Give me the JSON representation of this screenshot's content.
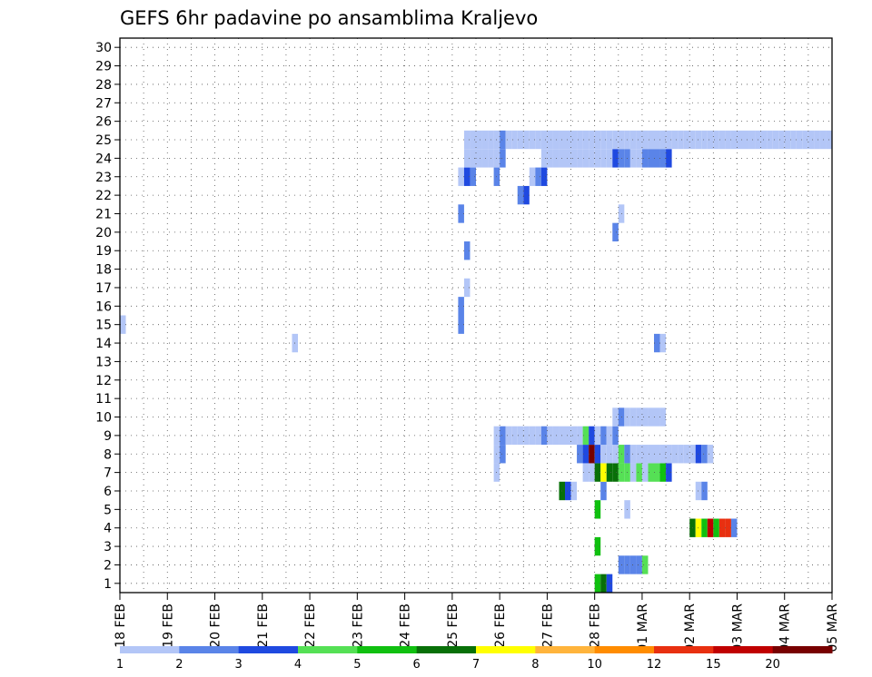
{
  "chart_data": {
    "type": "heatmap",
    "title": "GEFS 6hr padavine po ansamblima Kraljevo",
    "x_tick_labels": [
      "18 FEB",
      "19 FEB",
      "20 FEB",
      "21 FEB",
      "22 FEB",
      "23 FEB",
      "24 FEB",
      "25 FEB",
      "26 FEB",
      "27 FEB",
      "28 FEB",
      "01 MAR",
      "02 MAR",
      "03 MAR",
      "04 MAR",
      "05 MAR"
    ],
    "x_step_hours": 6,
    "y_tick_labels": [
      "1",
      "2",
      "3",
      "4",
      "5",
      "6",
      "7",
      "8",
      "9",
      "10",
      "11",
      "12",
      "13",
      "14",
      "15",
      "16",
      "17",
      "18",
      "19",
      "20",
      "21",
      "22",
      "23",
      "24",
      "25",
      "26",
      "27",
      "28",
      "29",
      "30"
    ],
    "ylim": [
      0,
      30
    ],
    "grid": true,
    "legend_position": "bottom",
    "legend": {
      "boundary_labels": [
        "1",
        "2",
        "3",
        "4",
        "5",
        "6",
        "7",
        "8",
        "10",
        "12",
        "15",
        "20"
      ],
      "colors": [
        "#b3c6f7",
        "#5a84e8",
        "#1f49e0",
        "#55e055",
        "#10c010",
        "#087008",
        "#ffff00",
        "#ffb43c",
        "#ff8c00",
        "#e83010",
        "#c00000",
        "#780000"
      ]
    },
    "cells": [
      {
        "t": 80,
        "m": 0,
        "c": 4
      },
      {
        "t": 81,
        "m": 0,
        "c": 5
      },
      {
        "t": 82,
        "m": 0,
        "c": 2
      },
      {
        "t": 84,
        "m": 1,
        "c": 1
      },
      {
        "t": 85,
        "m": 1,
        "c": 1
      },
      {
        "t": 86,
        "m": 1,
        "c": 1
      },
      {
        "t": 87,
        "m": 1,
        "c": 1
      },
      {
        "t": 88,
        "m": 1,
        "c": 3
      },
      {
        "t": 80,
        "m": 2,
        "c": 4
      },
      {
        "t": 96,
        "m": 3,
        "c": 5
      },
      {
        "t": 97,
        "m": 3,
        "c": 6
      },
      {
        "t": 98,
        "m": 3,
        "c": 4
      },
      {
        "t": 99,
        "m": 3,
        "c": 10
      },
      {
        "t": 100,
        "m": 3,
        "c": 4
      },
      {
        "t": 101,
        "m": 3,
        "c": 9
      },
      {
        "t": 102,
        "m": 3,
        "c": 9
      },
      {
        "t": 103,
        "m": 3,
        "c": 1
      },
      {
        "t": 80,
        "m": 4,
        "c": 4
      },
      {
        "t": 85,
        "m": 4,
        "c": 0
      },
      {
        "t": 74,
        "m": 5,
        "c": 5
      },
      {
        "t": 75,
        "m": 5,
        "c": 2
      },
      {
        "t": 76,
        "m": 5,
        "c": 0
      },
      {
        "t": 81,
        "m": 5,
        "c": 1
      },
      {
        "t": 97,
        "m": 5,
        "c": 0
      },
      {
        "t": 98,
        "m": 5,
        "c": 1
      },
      {
        "t": 63,
        "m": 6,
        "c": 0
      },
      {
        "t": 78,
        "m": 6,
        "c": 0
      },
      {
        "t": 79,
        "m": 6,
        "c": 0
      },
      {
        "t": 80,
        "m": 6,
        "c": 5
      },
      {
        "t": 81,
        "m": 6,
        "c": 6
      },
      {
        "t": 82,
        "m": 6,
        "c": 5
      },
      {
        "t": 83,
        "m": 6,
        "c": 5
      },
      {
        "t": 84,
        "m": 6,
        "c": 3
      },
      {
        "t": 85,
        "m": 6,
        "c": 3
      },
      {
        "t": 86,
        "m": 6,
        "c": 0
      },
      {
        "t": 87,
        "m": 6,
        "c": 3
      },
      {
        "t": 88,
        "m": 6,
        "c": 0
      },
      {
        "t": 89,
        "m": 6,
        "c": 3
      },
      {
        "t": 90,
        "m": 6,
        "c": 3
      },
      {
        "t": 91,
        "m": 6,
        "c": 4
      },
      {
        "t": 92,
        "m": 6,
        "c": 2
      },
      {
        "t": 63,
        "m": 7,
        "c": 0
      },
      {
        "t": 64,
        "m": 7,
        "c": 1
      },
      {
        "t": 77,
        "m": 7,
        "c": 1
      },
      {
        "t": 78,
        "m": 7,
        "c": 2
      },
      {
        "t": 79,
        "m": 7,
        "c": 11
      },
      {
        "t": 80,
        "m": 7,
        "c": 2
      },
      {
        "t": 81,
        "m": 7,
        "c": 0
      },
      {
        "t": 82,
        "m": 7,
        "c": 0
      },
      {
        "t": 83,
        "m": 7,
        "c": 0
      },
      {
        "t": 84,
        "m": 7,
        "c": 3
      },
      {
        "t": 85,
        "m": 7,
        "c": 1
      },
      {
        "t": 86,
        "m": 7,
        "c": 0
      },
      {
        "t": 87,
        "m": 7,
        "c": 0
      },
      {
        "t": 88,
        "m": 7,
        "c": 0
      },
      {
        "t": 89,
        "m": 7,
        "c": 0
      },
      {
        "t": 90,
        "m": 7,
        "c": 0
      },
      {
        "t": 91,
        "m": 7,
        "c": 0
      },
      {
        "t": 92,
        "m": 7,
        "c": 0
      },
      {
        "t": 93,
        "m": 7,
        "c": 0
      },
      {
        "t": 94,
        "m": 7,
        "c": 0
      },
      {
        "t": 95,
        "m": 7,
        "c": 0
      },
      {
        "t": 96,
        "m": 7,
        "c": 0
      },
      {
        "t": 97,
        "m": 7,
        "c": 2
      },
      {
        "t": 98,
        "m": 7,
        "c": 1
      },
      {
        "t": 99,
        "m": 7,
        "c": 0
      },
      {
        "t": 63,
        "m": 8,
        "c": 0
      },
      {
        "t": 64,
        "m": 8,
        "c": 1
      },
      {
        "t": 65,
        "m": 8,
        "c": 0
      },
      {
        "t": 66,
        "m": 8,
        "c": 0
      },
      {
        "t": 67,
        "m": 8,
        "c": 0
      },
      {
        "t": 68,
        "m": 8,
        "c": 0
      },
      {
        "t": 69,
        "m": 8,
        "c": 0
      },
      {
        "t": 70,
        "m": 8,
        "c": 0
      },
      {
        "t": 71,
        "m": 8,
        "c": 1
      },
      {
        "t": 72,
        "m": 8,
        "c": 0
      },
      {
        "t": 73,
        "m": 8,
        "c": 0
      },
      {
        "t": 74,
        "m": 8,
        "c": 0
      },
      {
        "t": 75,
        "m": 8,
        "c": 0
      },
      {
        "t": 76,
        "m": 8,
        "c": 0
      },
      {
        "t": 77,
        "m": 8,
        "c": 0
      },
      {
        "t": 78,
        "m": 8,
        "c": 3
      },
      {
        "t": 79,
        "m": 8,
        "c": 2
      },
      {
        "t": 80,
        "m": 8,
        "c": 0
      },
      {
        "t": 81,
        "m": 8,
        "c": 1
      },
      {
        "t": 82,
        "m": 8,
        "c": 0
      },
      {
        "t": 83,
        "m": 8,
        "c": 1
      },
      {
        "t": 83,
        "m": 9,
        "c": 0
      },
      {
        "t": 84,
        "m": 9,
        "c": 1
      },
      {
        "t": 85,
        "m": 9,
        "c": 0
      },
      {
        "t": 86,
        "m": 9,
        "c": 0
      },
      {
        "t": 87,
        "m": 9,
        "c": 0
      },
      {
        "t": 88,
        "m": 9,
        "c": 0
      },
      {
        "t": 89,
        "m": 9,
        "c": 0
      },
      {
        "t": 90,
        "m": 9,
        "c": 0
      },
      {
        "t": 91,
        "m": 9,
        "c": 0
      },
      {
        "t": 29,
        "m": 13,
        "c": 0
      },
      {
        "t": 90,
        "m": 13,
        "c": 1
      },
      {
        "t": 91,
        "m": 13,
        "c": 0
      },
      {
        "t": 0,
        "m": 14,
        "c": 0
      },
      {
        "t": 57,
        "m": 14,
        "c": 1
      },
      {
        "t": 57,
        "m": 15,
        "c": 1
      },
      {
        "t": 58,
        "m": 16,
        "c": 0
      },
      {
        "t": 58,
        "m": 18,
        "c": 1
      },
      {
        "t": 83,
        "m": 19,
        "c": 1
      },
      {
        "t": 57,
        "m": 20,
        "c": 1
      },
      {
        "t": 84,
        "m": 20,
        "c": 0
      },
      {
        "t": 67,
        "m": 21,
        "c": 1
      },
      {
        "t": 68,
        "m": 21,
        "c": 2
      },
      {
        "t": 57,
        "m": 22,
        "c": 0
      },
      {
        "t": 58,
        "m": 22,
        "c": 2
      },
      {
        "t": 59,
        "m": 22,
        "c": 1
      },
      {
        "t": 63,
        "m": 22,
        "c": 1
      },
      {
        "t": 69,
        "m": 22,
        "c": 0
      },
      {
        "t": 70,
        "m": 22,
        "c": 1
      },
      {
        "t": 71,
        "m": 22,
        "c": 2
      },
      {
        "t": 58,
        "m": 23,
        "c": 0
      },
      {
        "t": 59,
        "m": 23,
        "c": 0
      },
      {
        "t": 60,
        "m": 23,
        "c": 0
      },
      {
        "t": 61,
        "m": 23,
        "c": 0
      },
      {
        "t": 62,
        "m": 23,
        "c": 0
      },
      {
        "t": 63,
        "m": 23,
        "c": 0
      },
      {
        "t": 64,
        "m": 23,
        "c": 1
      },
      {
        "t": 71,
        "m": 23,
        "c": 0
      },
      {
        "t": 72,
        "m": 23,
        "c": 0
      },
      {
        "t": 73,
        "m": 23,
        "c": 0
      },
      {
        "t": 74,
        "m": 23,
        "c": 0
      },
      {
        "t": 75,
        "m": 23,
        "c": 0
      },
      {
        "t": 76,
        "m": 23,
        "c": 0
      },
      {
        "t": 77,
        "m": 23,
        "c": 0
      },
      {
        "t": 78,
        "m": 23,
        "c": 0
      },
      {
        "t": 79,
        "m": 23,
        "c": 0
      },
      {
        "t": 80,
        "m": 23,
        "c": 0
      },
      {
        "t": 81,
        "m": 23,
        "c": 0
      },
      {
        "t": 82,
        "m": 23,
        "c": 0
      },
      {
        "t": 83,
        "m": 23,
        "c": 2
      },
      {
        "t": 84,
        "m": 23,
        "c": 1
      },
      {
        "t": 85,
        "m": 23,
        "c": 1
      },
      {
        "t": 86,
        "m": 23,
        "c": 0
      },
      {
        "t": 87,
        "m": 23,
        "c": 0
      },
      {
        "t": 88,
        "m": 23,
        "c": 1
      },
      {
        "t": 89,
        "m": 23,
        "c": 1
      },
      {
        "t": 90,
        "m": 23,
        "c": 1
      },
      {
        "t": 91,
        "m": 23,
        "c": 1
      },
      {
        "t": 92,
        "m": 23,
        "c": 2
      },
      {
        "t": 58,
        "m": 24,
        "c": 0
      },
      {
        "t": 59,
        "m": 24,
        "c": 0
      },
      {
        "t": 60,
        "m": 24,
        "c": 0
      },
      {
        "t": 61,
        "m": 24,
        "c": 0
      },
      {
        "t": 62,
        "m": 24,
        "c": 0
      },
      {
        "t": 63,
        "m": 24,
        "c": 0
      },
      {
        "t": 64,
        "m": 24,
        "c": 1
      },
      {
        "t": 65,
        "m": 24,
        "c": 0
      },
      {
        "t": 66,
        "m": 24,
        "c": 0
      },
      {
        "t": 67,
        "m": 24,
        "c": 0
      },
      {
        "t": 68,
        "m": 24,
        "c": 0
      },
      {
        "t": 69,
        "m": 24,
        "c": 0
      },
      {
        "t": 70,
        "m": 24,
        "c": 0
      },
      {
        "t": 71,
        "m": 24,
        "c": 0
      },
      {
        "t": 72,
        "m": 24,
        "c": 0
      },
      {
        "t": 73,
        "m": 24,
        "c": 0
      },
      {
        "t": 74,
        "m": 24,
        "c": 0
      },
      {
        "t": 75,
        "m": 24,
        "c": 0
      },
      {
        "t": 76,
        "m": 24,
        "c": 0
      },
      {
        "t": 77,
        "m": 24,
        "c": 0
      },
      {
        "t": 78,
        "m": 24,
        "c": 0
      },
      {
        "t": 79,
        "m": 24,
        "c": 0
      },
      {
        "t": 80,
        "m": 24,
        "c": 0
      },
      {
        "t": 81,
        "m": 24,
        "c": 0
      },
      {
        "t": 82,
        "m": 24,
        "c": 0
      },
      {
        "t": 83,
        "m": 24,
        "c": 0
      },
      {
        "t": 84,
        "m": 24,
        "c": 0
      },
      {
        "t": 85,
        "m": 24,
        "c": 0
      },
      {
        "t": 86,
        "m": 24,
        "c": 0
      },
      {
        "t": 87,
        "m": 24,
        "c": 0
      },
      {
        "t": 88,
        "m": 24,
        "c": 0
      },
      {
        "t": 89,
        "m": 24,
        "c": 0
      },
      {
        "t": 90,
        "m": 24,
        "c": 0
      },
      {
        "t": 91,
        "m": 24,
        "c": 0
      },
      {
        "t": 92,
        "m": 24,
        "c": 0
      },
      {
        "t": 93,
        "m": 24,
        "c": 0
      },
      {
        "t": 94,
        "m": 24,
        "c": 0
      },
      {
        "t": 95,
        "m": 24,
        "c": 0
      },
      {
        "t": 96,
        "m": 24,
        "c": 0
      },
      {
        "t": 97,
        "m": 24,
        "c": 0
      },
      {
        "t": 98,
        "m": 24,
        "c": 0
      },
      {
        "t": 99,
        "m": 24,
        "c": 0
      },
      {
        "t": 100,
        "m": 24,
        "c": 0
      },
      {
        "t": 101,
        "m": 24,
        "c": 0
      },
      {
        "t": 102,
        "m": 24,
        "c": 0
      },
      {
        "t": 103,
        "m": 24,
        "c": 0
      },
      {
        "t": 104,
        "m": 24,
        "c": 0
      },
      {
        "t": 105,
        "m": 24,
        "c": 0
      },
      {
        "t": 106,
        "m": 24,
        "c": 0
      },
      {
        "t": 107,
        "m": 24,
        "c": 0
      },
      {
        "t": 108,
        "m": 24,
        "c": 0
      },
      {
        "t": 109,
        "m": 24,
        "c": 0
      },
      {
        "t": 110,
        "m": 24,
        "c": 0
      },
      {
        "t": 111,
        "m": 24,
        "c": 0
      },
      {
        "t": 112,
        "m": 24,
        "c": 0
      },
      {
        "t": 113,
        "m": 24,
        "c": 0
      },
      {
        "t": 114,
        "m": 24,
        "c": 0
      },
      {
        "t": 115,
        "m": 24,
        "c": 0
      },
      {
        "t": 116,
        "m": 24,
        "c": 0
      },
      {
        "t": 117,
        "m": 24,
        "c": 0
      },
      {
        "t": 118,
        "m": 24,
        "c": 0
      },
      {
        "t": 119,
        "m": 24,
        "c": 0
      }
    ]
  }
}
